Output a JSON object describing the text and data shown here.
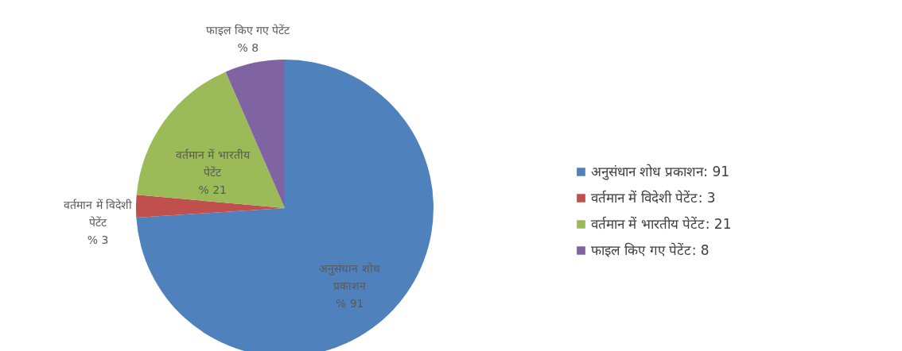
{
  "chart_data": {
    "type": "pie",
    "categories": [
      "अनुसंधान शोध प्रकाशन",
      "वर्तमान में विदेशी पेटेंट",
      "वर्तमान में भारतीय पेटेंट",
      "फाइल किए गए पेटेंट"
    ],
    "values": [
      91,
      3,
      21,
      8
    ],
    "colors": [
      "#4f81bd",
      "#c0504d",
      "#9bbb59",
      "#8064a2"
    ],
    "value_labels": [
      "% 91",
      "% 3",
      "% 21",
      "% 8"
    ],
    "annotations": [
      ": 91",
      ": 3",
      ": 21",
      ": 8"
    ],
    "legend": "right"
  }
}
